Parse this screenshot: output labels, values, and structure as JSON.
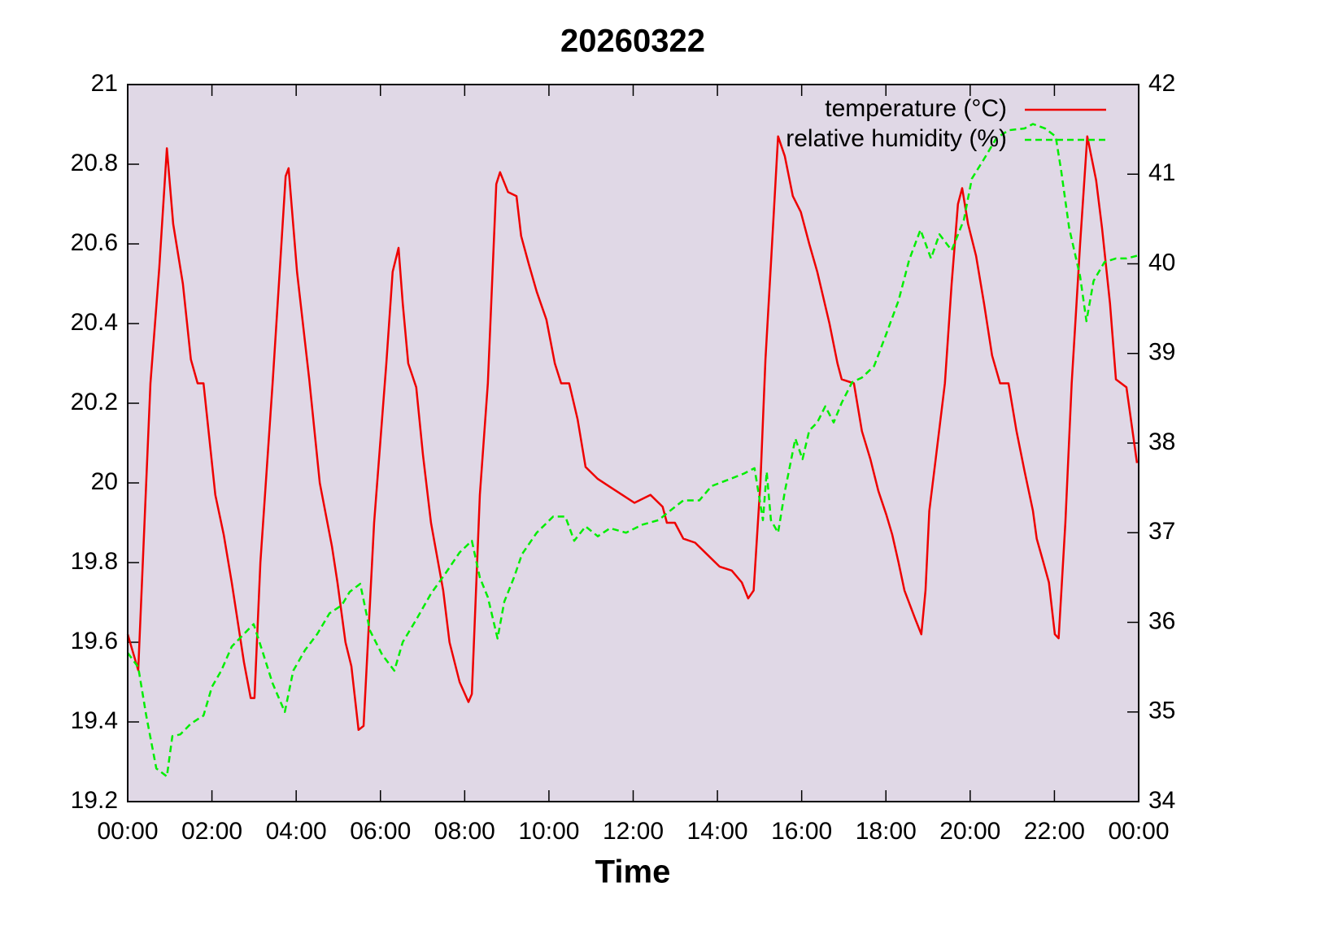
{
  "chart_data": {
    "type": "line",
    "title": "20260322",
    "xlabel": "Time",
    "xlim": [
      0,
      24
    ],
    "xticks": [
      {
        "value": 0,
        "label": "00:00"
      },
      {
        "value": 2,
        "label": "02:00"
      },
      {
        "value": 4,
        "label": "04:00"
      },
      {
        "value": 6,
        "label": "06:00"
      },
      {
        "value": 8,
        "label": "08:00"
      },
      {
        "value": 10,
        "label": "10:00"
      },
      {
        "value": 12,
        "label": "12:00"
      },
      {
        "value": 14,
        "label": "14:00"
      },
      {
        "value": 16,
        "label": "16:00"
      },
      {
        "value": 18,
        "label": "18:00"
      },
      {
        "value": 20,
        "label": "20:00"
      },
      {
        "value": 22,
        "label": "22:00"
      },
      {
        "value": 24,
        "label": "00:00"
      }
    ],
    "ylim": [
      19.2,
      21
    ],
    "yticks": [
      19.2,
      19.4,
      19.6,
      19.8,
      20,
      20.2,
      20.4,
      20.6,
      20.8,
      21
    ],
    "y2lim": [
      34,
      42
    ],
    "y2ticks": [
      34,
      35,
      36,
      37,
      38,
      39,
      40,
      41,
      42
    ],
    "legend": "upper right",
    "background": "#e0d8e6",
    "series": [
      {
        "name": "temperature (°C)",
        "color": "#ee0000",
        "dash": false,
        "x": [
          0,
          0.25,
          0.54,
          0.75,
          0.93,
          1.08,
          1.31,
          1.5,
          1.66,
          1.8,
          2.08,
          2.28,
          2.47,
          2.76,
          2.92,
          3.01,
          3.15,
          3.44,
          3.59,
          3.75,
          3.82,
          4.02,
          4.31,
          4.56,
          4.85,
          4.98,
          5.17,
          5.31,
          5.48,
          5.6,
          5.85,
          6.14,
          6.29,
          6.43,
          6.53,
          6.66,
          6.85,
          7.01,
          7.2,
          7.49,
          7.64,
          7.88,
          8.09,
          8.17,
          8.36,
          8.55,
          8.75,
          8.84,
          9.03,
          9.23,
          9.34,
          9.52,
          9.71,
          9.94,
          10.14,
          10.29,
          10.48,
          10.68,
          10.87,
          11.16,
          11.45,
          11.74,
          12.03,
          12.41,
          12.7,
          12.8,
          12.99,
          13.19,
          13.47,
          13.76,
          14.05,
          14.34,
          14.58,
          14.73,
          14.86,
          15.02,
          15.14,
          15.27,
          15.44,
          15.6,
          15.79,
          15.98,
          16.18,
          16.37,
          16.66,
          16.85,
          16.95,
          17.24,
          17.43,
          17.63,
          17.82,
          18.01,
          18.15,
          18.3,
          18.44,
          18.69,
          18.84,
          18.94,
          19.03,
          19.17,
          19.4,
          19.56,
          19.71,
          19.81,
          19.95,
          20.14,
          20.33,
          20.52,
          20.71,
          20.91,
          21.1,
          21.29,
          21.49,
          21.58,
          21.74,
          21.87,
          22.01,
          22.1,
          22.26,
          22.41,
          22.61,
          22.78,
          22.99,
          23.13,
          23.32,
          23.46,
          23.71,
          23.96
        ],
        "values": [
          19.62,
          19.53,
          20.25,
          20.54,
          20.84,
          20.65,
          20.5,
          20.31,
          20.25,
          20.25,
          19.97,
          19.87,
          19.75,
          19.55,
          19.46,
          19.46,
          19.8,
          20.25,
          20.5,
          20.77,
          20.79,
          20.53,
          20.26,
          20.0,
          19.84,
          19.75,
          19.6,
          19.54,
          19.38,
          19.39,
          19.9,
          20.3,
          20.53,
          20.59,
          20.45,
          20.3,
          20.24,
          20.07,
          19.9,
          19.73,
          19.6,
          19.5,
          19.45,
          19.47,
          19.97,
          20.25,
          20.75,
          20.78,
          20.73,
          20.72,
          20.62,
          20.55,
          20.48,
          20.41,
          20.3,
          20.25,
          20.25,
          20.16,
          20.04,
          20.01,
          19.99,
          19.97,
          19.95,
          19.97,
          19.94,
          19.9,
          19.9,
          19.86,
          19.85,
          19.82,
          19.79,
          19.78,
          19.75,
          19.71,
          19.73,
          20.0,
          20.31,
          20.55,
          20.87,
          20.82,
          20.72,
          20.68,
          20.6,
          20.53,
          20.4,
          20.3,
          20.26,
          20.25,
          20.13,
          20.06,
          19.98,
          19.92,
          19.87,
          19.8,
          19.73,
          19.66,
          19.62,
          19.73,
          19.93,
          20.05,
          20.25,
          20.5,
          20.7,
          20.74,
          20.65,
          20.57,
          20.45,
          20.32,
          20.25,
          20.25,
          20.13,
          20.03,
          19.93,
          19.86,
          19.8,
          19.75,
          19.62,
          19.61,
          19.9,
          20.25,
          20.6,
          20.87,
          20.76,
          20.64,
          20.45,
          20.26,
          20.24,
          20.05
        ]
      },
      {
        "name": "relative humidity (%)",
        "color": "#00ee00",
        "dash": true,
        "axis": "y2",
        "x": [
          0,
          0.25,
          0.44,
          0.68,
          0.93,
          1.06,
          1.25,
          1.5,
          1.8,
          2.0,
          2.22,
          2.47,
          2.76,
          2.99,
          3.19,
          3.44,
          3.73,
          3.93,
          4.21,
          4.5,
          4.79,
          5.08,
          5.27,
          5.52,
          5.75,
          6.04,
          6.33,
          6.53,
          6.85,
          7.2,
          7.55,
          7.88,
          8.17,
          8.36,
          8.55,
          8.78,
          8.94,
          9.17,
          9.36,
          9.71,
          10.1,
          10.39,
          10.6,
          10.87,
          11.16,
          11.45,
          11.83,
          12.22,
          12.6,
          12.89,
          13.19,
          13.57,
          13.86,
          14.25,
          14.63,
          14.88,
          15.08,
          15.17,
          15.27,
          15.44,
          15.6,
          15.85,
          16.02,
          16.18,
          16.37,
          16.56,
          16.76,
          16.95,
          17.2,
          17.43,
          17.72,
          18.01,
          18.3,
          18.55,
          18.82,
          19.07,
          19.27,
          19.56,
          19.85,
          20.04,
          20.33,
          20.62,
          20.91,
          21.29,
          21.49,
          21.78,
          22.03,
          22.16,
          22.35,
          22.61,
          22.76,
          22.93,
          23.19,
          23.46,
          23.71,
          23.96
        ],
        "values": [
          35.66,
          35.5,
          34.96,
          34.37,
          34.28,
          34.73,
          34.75,
          34.87,
          34.96,
          35.28,
          35.46,
          35.73,
          35.87,
          35.98,
          35.69,
          35.32,
          35.0,
          35.46,
          35.69,
          35.87,
          36.1,
          36.19,
          36.34,
          36.43,
          35.91,
          35.64,
          35.46,
          35.78,
          36.03,
          36.32,
          36.55,
          36.78,
          36.91,
          36.5,
          36.28,
          35.82,
          36.23,
          36.5,
          36.76,
          37.0,
          37.18,
          37.18,
          36.91,
          37.07,
          36.96,
          37.05,
          37.0,
          37.09,
          37.14,
          37.25,
          37.36,
          37.36,
          37.52,
          37.59,
          37.66,
          37.72,
          37.14,
          37.68,
          37.14,
          37.0,
          37.46,
          38.05,
          37.82,
          38.14,
          38.23,
          38.41,
          38.23,
          38.45,
          38.68,
          38.73,
          38.86,
          39.22,
          39.59,
          40.04,
          40.38,
          40.06,
          40.33,
          40.15,
          40.49,
          40.95,
          41.17,
          41.4,
          41.49,
          41.51,
          41.56,
          41.51,
          41.42,
          41.04,
          40.4,
          39.86,
          39.36,
          39.81,
          40.02,
          40.06,
          40.06,
          40.09
        ]
      }
    ]
  }
}
